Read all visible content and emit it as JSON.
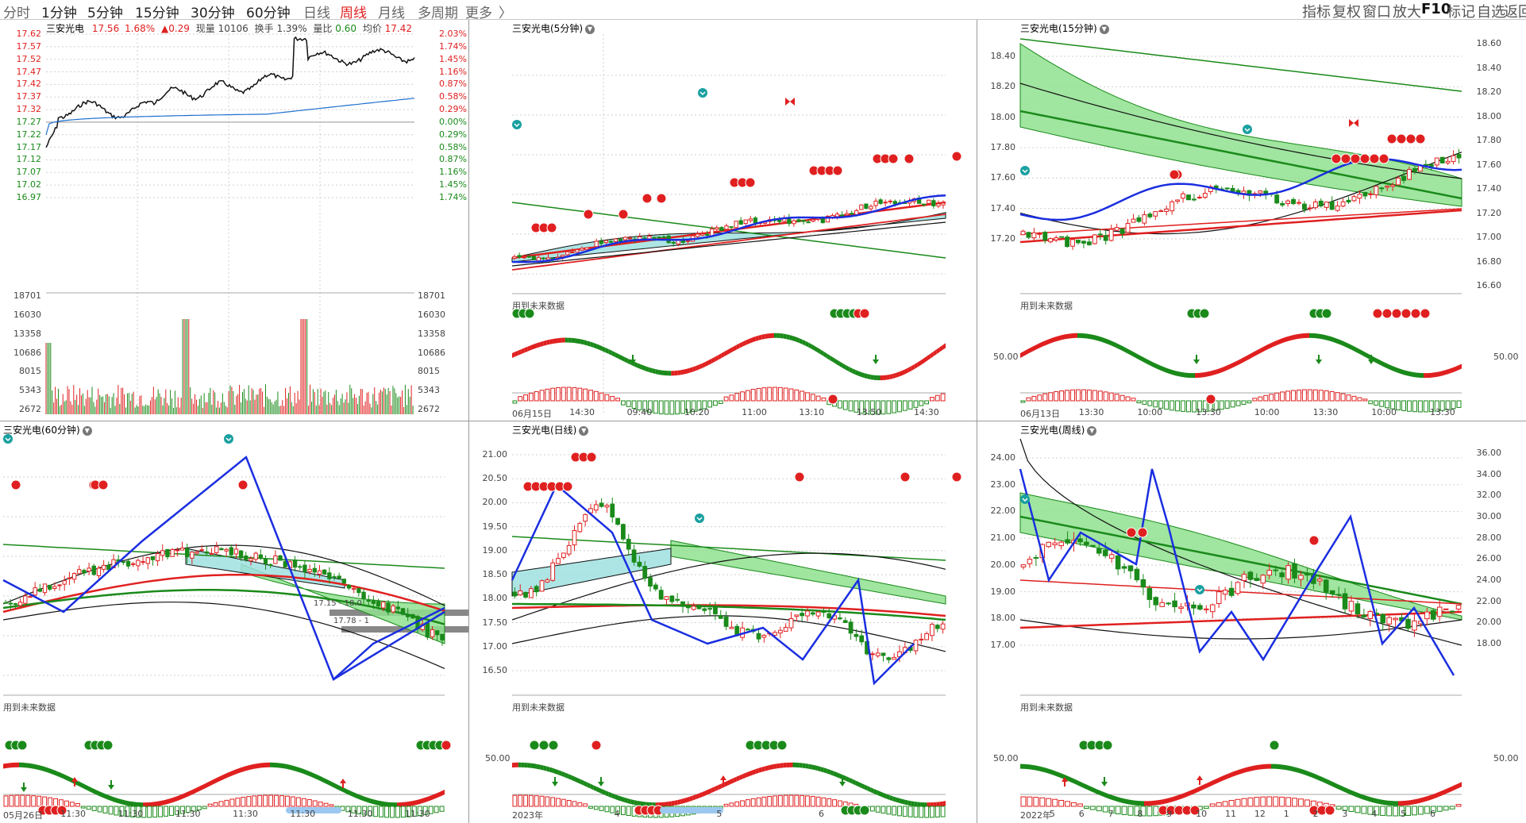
{
  "toolbar": {
    "periods": [
      "分时",
      "1分钟",
      "5分钟",
      "15分钟",
      "30分钟",
      "60分钟",
      "日线",
      "周线",
      "月线",
      "多周期",
      "更多"
    ],
    "more_arrow": "〉",
    "right_tools": [
      "指标",
      "复权",
      "窗口",
      "放大",
      "F10",
      "标记",
      "自选",
      "返回"
    ]
  },
  "quote": {
    "name": "三安光电",
    "price": "17.56",
    "pct": "1.68%",
    "change": "▲0.29",
    "volume_label": "现量",
    "volume": "10106",
    "turnover_label": "换手",
    "turnover": "1.39%",
    "ratio_label": "量比",
    "ratio": "0.60",
    "avg_label": "均价",
    "avg": "17.42"
  },
  "intraday": {
    "prices": [
      "17.62",
      "17.57",
      "17.52",
      "17.47",
      "17.42",
      "17.37",
      "17.32",
      "17.27",
      "17.22",
      "17.17",
      "17.12",
      "17.07",
      "17.02",
      "16.97"
    ],
    "pcts": [
      "2.03%",
      "1.74%",
      "1.45%",
      "1.16%",
      "0.87%",
      "0.58%",
      "0.29%",
      "0.00%",
      "0.29%",
      "0.58%",
      "0.87%",
      "1.16%",
      "1.45%",
      "1.74%"
    ],
    "vols": [
      "18701",
      "16030",
      "13358",
      "10686",
      "8015",
      "5343",
      "2672"
    ]
  },
  "panels": {
    "m5": {
      "title": "三安光电(5分钟)",
      "note": "用到未来数据",
      "xlabels": [
        "06月15日",
        "14:30",
        "09:40",
        "10:20",
        "11:00",
        "13:10",
        "13:50",
        "14:30"
      ]
    },
    "m15": {
      "title": "三安光电(15分钟)",
      "note": "用到未来数据",
      "left_axis": [
        "18.40",
        "18.20",
        "18.00",
        "17.80",
        "17.60",
        "17.40",
        "17.20"
      ],
      "right_axis": [
        "18.60",
        "18.40",
        "18.20",
        "18.00",
        "17.80",
        "17.60",
        "17.40",
        "17.20",
        "17.00",
        "16.80",
        "16.60"
      ],
      "osc_left": "50.00",
      "osc_right": "50.00",
      "xlabels": [
        "06月13日",
        "13:30",
        "10:00",
        "13:30",
        "10:00",
        "13:30",
        "10:00",
        "13:30"
      ]
    },
    "m60": {
      "title": "三安光电(60分钟)",
      "note": "用到未来数据",
      "level1": "17.15 - 18.0",
      "level2": "17.78 - 1",
      "xlabels": [
        "05月26日",
        "11:30",
        "11:30",
        "11:30",
        "11:30",
        "11:30",
        "11:30",
        "11:30"
      ]
    },
    "day": {
      "title": "三安光电(日线)",
      "note": "用到未来数据",
      "left_axis": [
        "21.00",
        "20.50",
        "20.00",
        "19.50",
        "19.00",
        "18.50",
        "18.00",
        "17.50",
        "17.00",
        "16.50"
      ],
      "osc_left": "50.00",
      "xlabels": [
        "2023年",
        "4",
        "5",
        "6"
      ]
    },
    "week": {
      "title": "三安光电(周线)",
      "note": "用到未来数据",
      "left_axis": [
        "24.00",
        "23.00",
        "22.00",
        "21.00",
        "20.00",
        "19.00",
        "18.00",
        "17.00"
      ],
      "right_axis": [
        "36.00",
        "34.00",
        "32.00",
        "30.00",
        "28.00",
        "26.00",
        "24.00",
        "22.00",
        "20.00",
        "18.00"
      ],
      "osc_left": "50.00",
      "osc_right": "50.00",
      "xlabels": [
        "2022年",
        "5",
        "6",
        "7",
        "8",
        "9",
        "10",
        "11",
        "12",
        "1",
        "2",
        "3",
        "4",
        "5",
        "6"
      ]
    }
  },
  "colors": {
    "up": "#e02020",
    "down": "#1a8a1a",
    "avg": "#1f6fd0",
    "zigzag": "#1a2ee0",
    "grid": "#cfcfcf"
  }
}
